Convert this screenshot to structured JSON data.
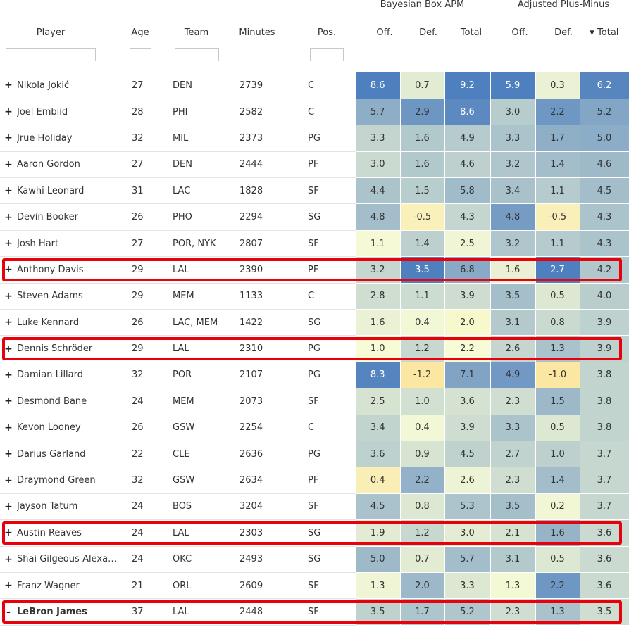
{
  "groups": {
    "bbox_apm": "Bayesian Box APM",
    "apm": "Adjusted Plus-Minus"
  },
  "headers": {
    "player": "Player",
    "age": "Age",
    "team": "Team",
    "minutes": "Minutes",
    "pos": "Pos.",
    "off": "Off.",
    "def": "Def.",
    "total": "Total",
    "off2": "Off.",
    "def2": "Def.",
    "total2": "Total",
    "sort_indicator": "▼"
  },
  "filters": {
    "player": "",
    "age": "",
    "team": "",
    "pos": ""
  },
  "expand_symbol": "+",
  "collapse_symbol": "-",
  "rows": [
    {
      "expand": "+",
      "name": "Nikola Jokić",
      "age": "27",
      "team": "DEN",
      "minutes": "2739",
      "pos": "C",
      "b_off": "8.6",
      "b_def": "0.7",
      "b_tot": "9.2",
      "a_off": "5.9",
      "a_def": "0.3",
      "a_tot": "6.2"
    },
    {
      "expand": "+",
      "name": "Joel Embiid",
      "age": "28",
      "team": "PHI",
      "minutes": "2582",
      "pos": "C",
      "b_off": "5.7",
      "b_def": "2.9",
      "b_tot": "8.6",
      "a_off": "3.0",
      "a_def": "2.2",
      "a_tot": "5.2"
    },
    {
      "expand": "+",
      "name": "Jrue Holiday",
      "age": "32",
      "team": "MIL",
      "minutes": "2373",
      "pos": "PG",
      "b_off": "3.3",
      "b_def": "1.6",
      "b_tot": "4.9",
      "a_off": "3.3",
      "a_def": "1.7",
      "a_tot": "5.0"
    },
    {
      "expand": "+",
      "name": "Aaron Gordon",
      "age": "27",
      "team": "DEN",
      "minutes": "2444",
      "pos": "PF",
      "b_off": "3.0",
      "b_def": "1.6",
      "b_tot": "4.6",
      "a_off": "3.2",
      "a_def": "1.4",
      "a_tot": "4.6"
    },
    {
      "expand": "+",
      "name": "Kawhi Leonard",
      "age": "31",
      "team": "LAC",
      "minutes": "1828",
      "pos": "SF",
      "b_off": "4.4",
      "b_def": "1.5",
      "b_tot": "5.8",
      "a_off": "3.4",
      "a_def": "1.1",
      "a_tot": "4.5"
    },
    {
      "expand": "+",
      "name": "Devin Booker",
      "age": "26",
      "team": "PHO",
      "minutes": "2294",
      "pos": "SG",
      "b_off": "4.8",
      "b_def": "-0.5",
      "b_tot": "4.3",
      "a_off": "4.8",
      "a_def": "-0.5",
      "a_tot": "4.3"
    },
    {
      "expand": "+",
      "name": "Josh Hart",
      "age": "27",
      "team": "POR, NYK",
      "minutes": "2807",
      "pos": "SF",
      "b_off": "1.1",
      "b_def": "1.4",
      "b_tot": "2.5",
      "a_off": "3.2",
      "a_def": "1.1",
      "a_tot": "4.3"
    },
    {
      "expand": "+",
      "name": "Anthony Davis",
      "age": "29",
      "team": "LAL",
      "minutes": "2390",
      "pos": "PF",
      "b_off": "3.2",
      "b_def": "3.5",
      "b_tot": "6.8",
      "a_off": "1.6",
      "a_def": "2.7",
      "a_tot": "4.2"
    },
    {
      "expand": "+",
      "name": "Steven Adams",
      "age": "29",
      "team": "MEM",
      "minutes": "1133",
      "pos": "C",
      "b_off": "2.8",
      "b_def": "1.1",
      "b_tot": "3.9",
      "a_off": "3.5",
      "a_def": "0.5",
      "a_tot": "4.0"
    },
    {
      "expand": "+",
      "name": "Luke Kennard",
      "age": "26",
      "team": "LAC, MEM",
      "minutes": "1422",
      "pos": "SG",
      "b_off": "1.6",
      "b_def": "0.4",
      "b_tot": "2.0",
      "a_off": "3.1",
      "a_def": "0.8",
      "a_tot": "3.9"
    },
    {
      "expand": "+",
      "name": "Dennis Schröder",
      "age": "29",
      "team": "LAL",
      "minutes": "2310",
      "pos": "PG",
      "b_off": "1.0",
      "b_def": "1.2",
      "b_tot": "2.2",
      "a_off": "2.6",
      "a_def": "1.3",
      "a_tot": "3.9"
    },
    {
      "expand": "+",
      "name": "Damian Lillard",
      "age": "32",
      "team": "POR",
      "minutes": "2107",
      "pos": "PG",
      "b_off": "8.3",
      "b_def": "-1.2",
      "b_tot": "7.1",
      "a_off": "4.9",
      "a_def": "-1.0",
      "a_tot": "3.8"
    },
    {
      "expand": "+",
      "name": "Desmond Bane",
      "age": "24",
      "team": "MEM",
      "minutes": "2073",
      "pos": "SF",
      "b_off": "2.5",
      "b_def": "1.0",
      "b_tot": "3.6",
      "a_off": "2.3",
      "a_def": "1.5",
      "a_tot": "3.8"
    },
    {
      "expand": "+",
      "name": "Kevon Looney",
      "age": "26",
      "team": "GSW",
      "minutes": "2254",
      "pos": "C",
      "b_off": "3.4",
      "b_def": "0.4",
      "b_tot": "3.9",
      "a_off": "3.3",
      "a_def": "0.5",
      "a_tot": "3.8"
    },
    {
      "expand": "+",
      "name": "Darius Garland",
      "age": "22",
      "team": "CLE",
      "minutes": "2636",
      "pos": "PG",
      "b_off": "3.6",
      "b_def": "0.9",
      "b_tot": "4.5",
      "a_off": "2.7",
      "a_def": "1.0",
      "a_tot": "3.7"
    },
    {
      "expand": "+",
      "name": "Draymond Green",
      "age": "32",
      "team": "GSW",
      "minutes": "2634",
      "pos": "PF",
      "b_off": "0.4",
      "b_def": "2.2",
      "b_tot": "2.6",
      "a_off": "2.3",
      "a_def": "1.4",
      "a_tot": "3.7"
    },
    {
      "expand": "+",
      "name": "Jayson Tatum",
      "age": "24",
      "team": "BOS",
      "minutes": "3204",
      "pos": "SF",
      "b_off": "4.5",
      "b_def": "0.8",
      "b_tot": "5.3",
      "a_off": "3.5",
      "a_def": "0.2",
      "a_tot": "3.7"
    },
    {
      "expand": "+",
      "name": "Austin Reaves",
      "age": "24",
      "team": "LAL",
      "minutes": "2303",
      "pos": "SG",
      "b_off": "1.9",
      "b_def": "1.2",
      "b_tot": "3.0",
      "a_off": "2.1",
      "a_def": "1.6",
      "a_tot": "3.6"
    },
    {
      "expand": "+",
      "name": "Shai Gilgeous-Alexa…",
      "age": "24",
      "team": "OKC",
      "minutes": "2493",
      "pos": "SG",
      "b_off": "5.0",
      "b_def": "0.7",
      "b_tot": "5.7",
      "a_off": "3.1",
      "a_def": "0.5",
      "a_tot": "3.6"
    },
    {
      "expand": "+",
      "name": "Franz Wagner",
      "age": "21",
      "team": "ORL",
      "minutes": "2609",
      "pos": "SF",
      "b_off": "1.3",
      "b_def": "2.0",
      "b_tot": "3.3",
      "a_off": "1.3",
      "a_def": "2.2",
      "a_tot": "3.6"
    },
    {
      "expand": "-",
      "name": "LeBron James",
      "age": "37",
      "team": "LAL",
      "minutes": "2448",
      "pos": "SF",
      "b_off": "3.5",
      "b_def": "1.7",
      "b_tot": "5.2",
      "a_off": "2.3",
      "a_def": "1.3",
      "a_tot": "3.5",
      "bold": true
    }
  ],
  "highlighted_rows": [
    7,
    10,
    17,
    20
  ],
  "highlight_color": "#e8000b",
  "color_scale": {
    "low": "#fbe7a1",
    "mid": "#f7fbd6",
    "high": "#4e7fbe"
  }
}
